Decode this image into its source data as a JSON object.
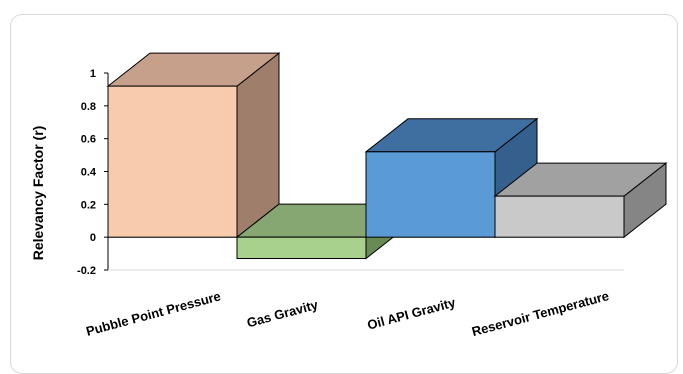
{
  "chart_data": {
    "type": "bar",
    "style": "3d",
    "title": "",
    "xlabel": "",
    "ylabel": "Relevancy Factor (r)",
    "categories": [
      "Pubble Point Pressure",
      "Gas Gravity",
      "Oil API Gravity",
      "Reservoir Temperature"
    ],
    "values": [
      0.92,
      -0.13,
      0.52,
      0.25
    ],
    "ylim": [
      -0.2,
      1
    ],
    "yticks": [
      "-0.2",
      "0",
      "0.2",
      "0.4",
      "0.6",
      "0.8",
      "1"
    ],
    "grid": false,
    "legend": "none",
    "colors": {
      "front": [
        "#f8cbad",
        "#a9d18e",
        "#5b9bd5",
        "#c9c9c9"
      ],
      "top": [
        "#c6a08a",
        "#87a772",
        "#3f6fa0",
        "#a1a1a1"
      ],
      "side": [
        "#a07e6c",
        "#6a8a55",
        "#35608e",
        "#858585"
      ]
    }
  }
}
